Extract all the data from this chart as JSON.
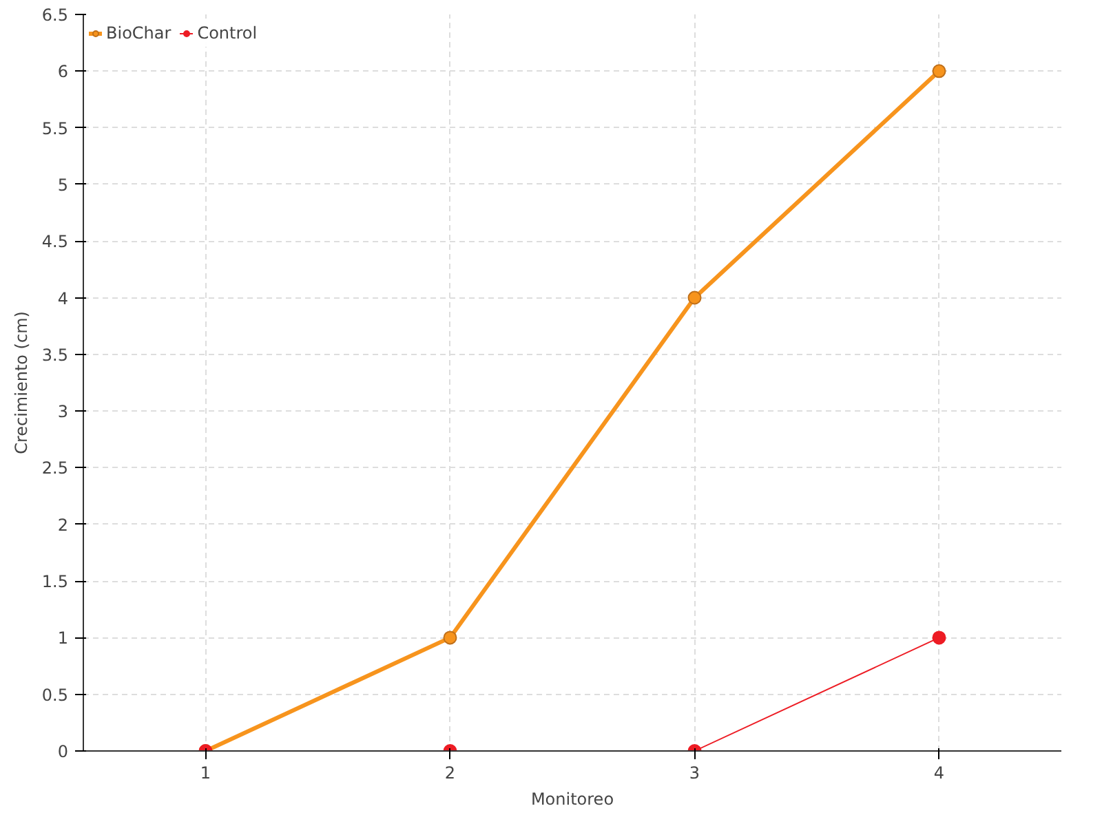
{
  "chart_data": {
    "type": "line",
    "xlabel": "Monitoreo",
    "ylabel": "Crecimiento (cm)",
    "x": [
      1,
      2,
      3,
      4
    ],
    "series": [
      {
        "name": "BioChar",
        "color": "#f7941d",
        "values": [
          0,
          1,
          4,
          6
        ]
      },
      {
        "name": "Control",
        "color": "#ed1c24",
        "values": [
          0,
          0,
          0,
          1
        ]
      }
    ],
    "xlim": [
      0.5,
      4.5
    ],
    "xticks": [
      1,
      2,
      3,
      4
    ],
    "ylim": [
      0,
      6.5
    ],
    "yticks": [
      0,
      0.5,
      1,
      1.5,
      2,
      2.5,
      3,
      3.5,
      4,
      4.5,
      5,
      5.5,
      6,
      6.5
    ],
    "grid": true,
    "legend": "top left",
    "marker": "circle",
    "line_style": "solid"
  }
}
